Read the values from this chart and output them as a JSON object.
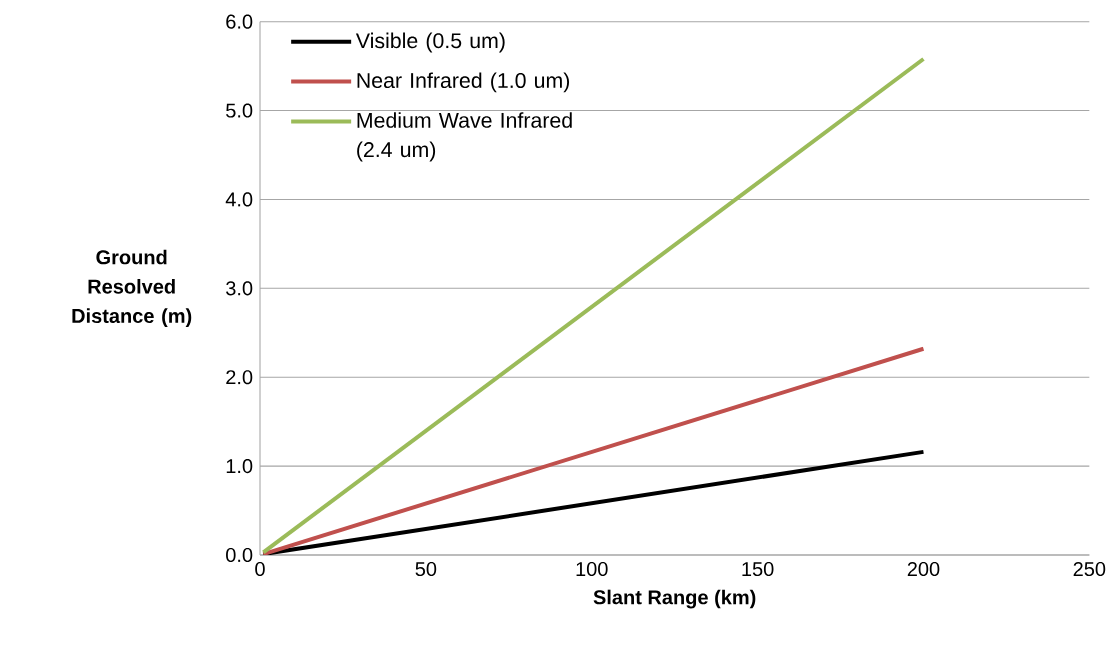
{
  "chart_data": {
    "type": "line",
    "xlabel": "Slant Range (km)",
    "ylabel": "Ground Resolved Distance (m)",
    "x": [
      1,
      200
    ],
    "series": [
      {
        "name": "Visible (0.5 um)",
        "color": "#000000",
        "values": [
          0.01,
          1.16
        ]
      },
      {
        "name": "Near Infrared (1.0 um)",
        "color": "#c0504d",
        "values": [
          0.01,
          2.32
        ]
      },
      {
        "name": "Medium Wave Infrared (2.4 um)",
        "color": "#9bbb59",
        "values": [
          0.03,
          5.58
        ]
      }
    ],
    "xlim": [
      0,
      250
    ],
    "xticks": [
      0,
      50,
      100,
      150,
      200,
      250
    ],
    "ylim": [
      0,
      6
    ],
    "yticks": [
      {
        "value": 0,
        "label": "0.0"
      },
      {
        "value": 1,
        "label": "1.0"
      },
      {
        "value": 2,
        "label": "2.0"
      },
      {
        "value": 3,
        "label": "3.0"
      },
      {
        "value": 4,
        "label": "4.0"
      },
      {
        "value": 5,
        "label": "5.0"
      },
      {
        "value": 6,
        "label": "6.0"
      }
    ],
    "grid": "y",
    "legend": "top left",
    "marker": "none",
    "line_style": "solid"
  }
}
